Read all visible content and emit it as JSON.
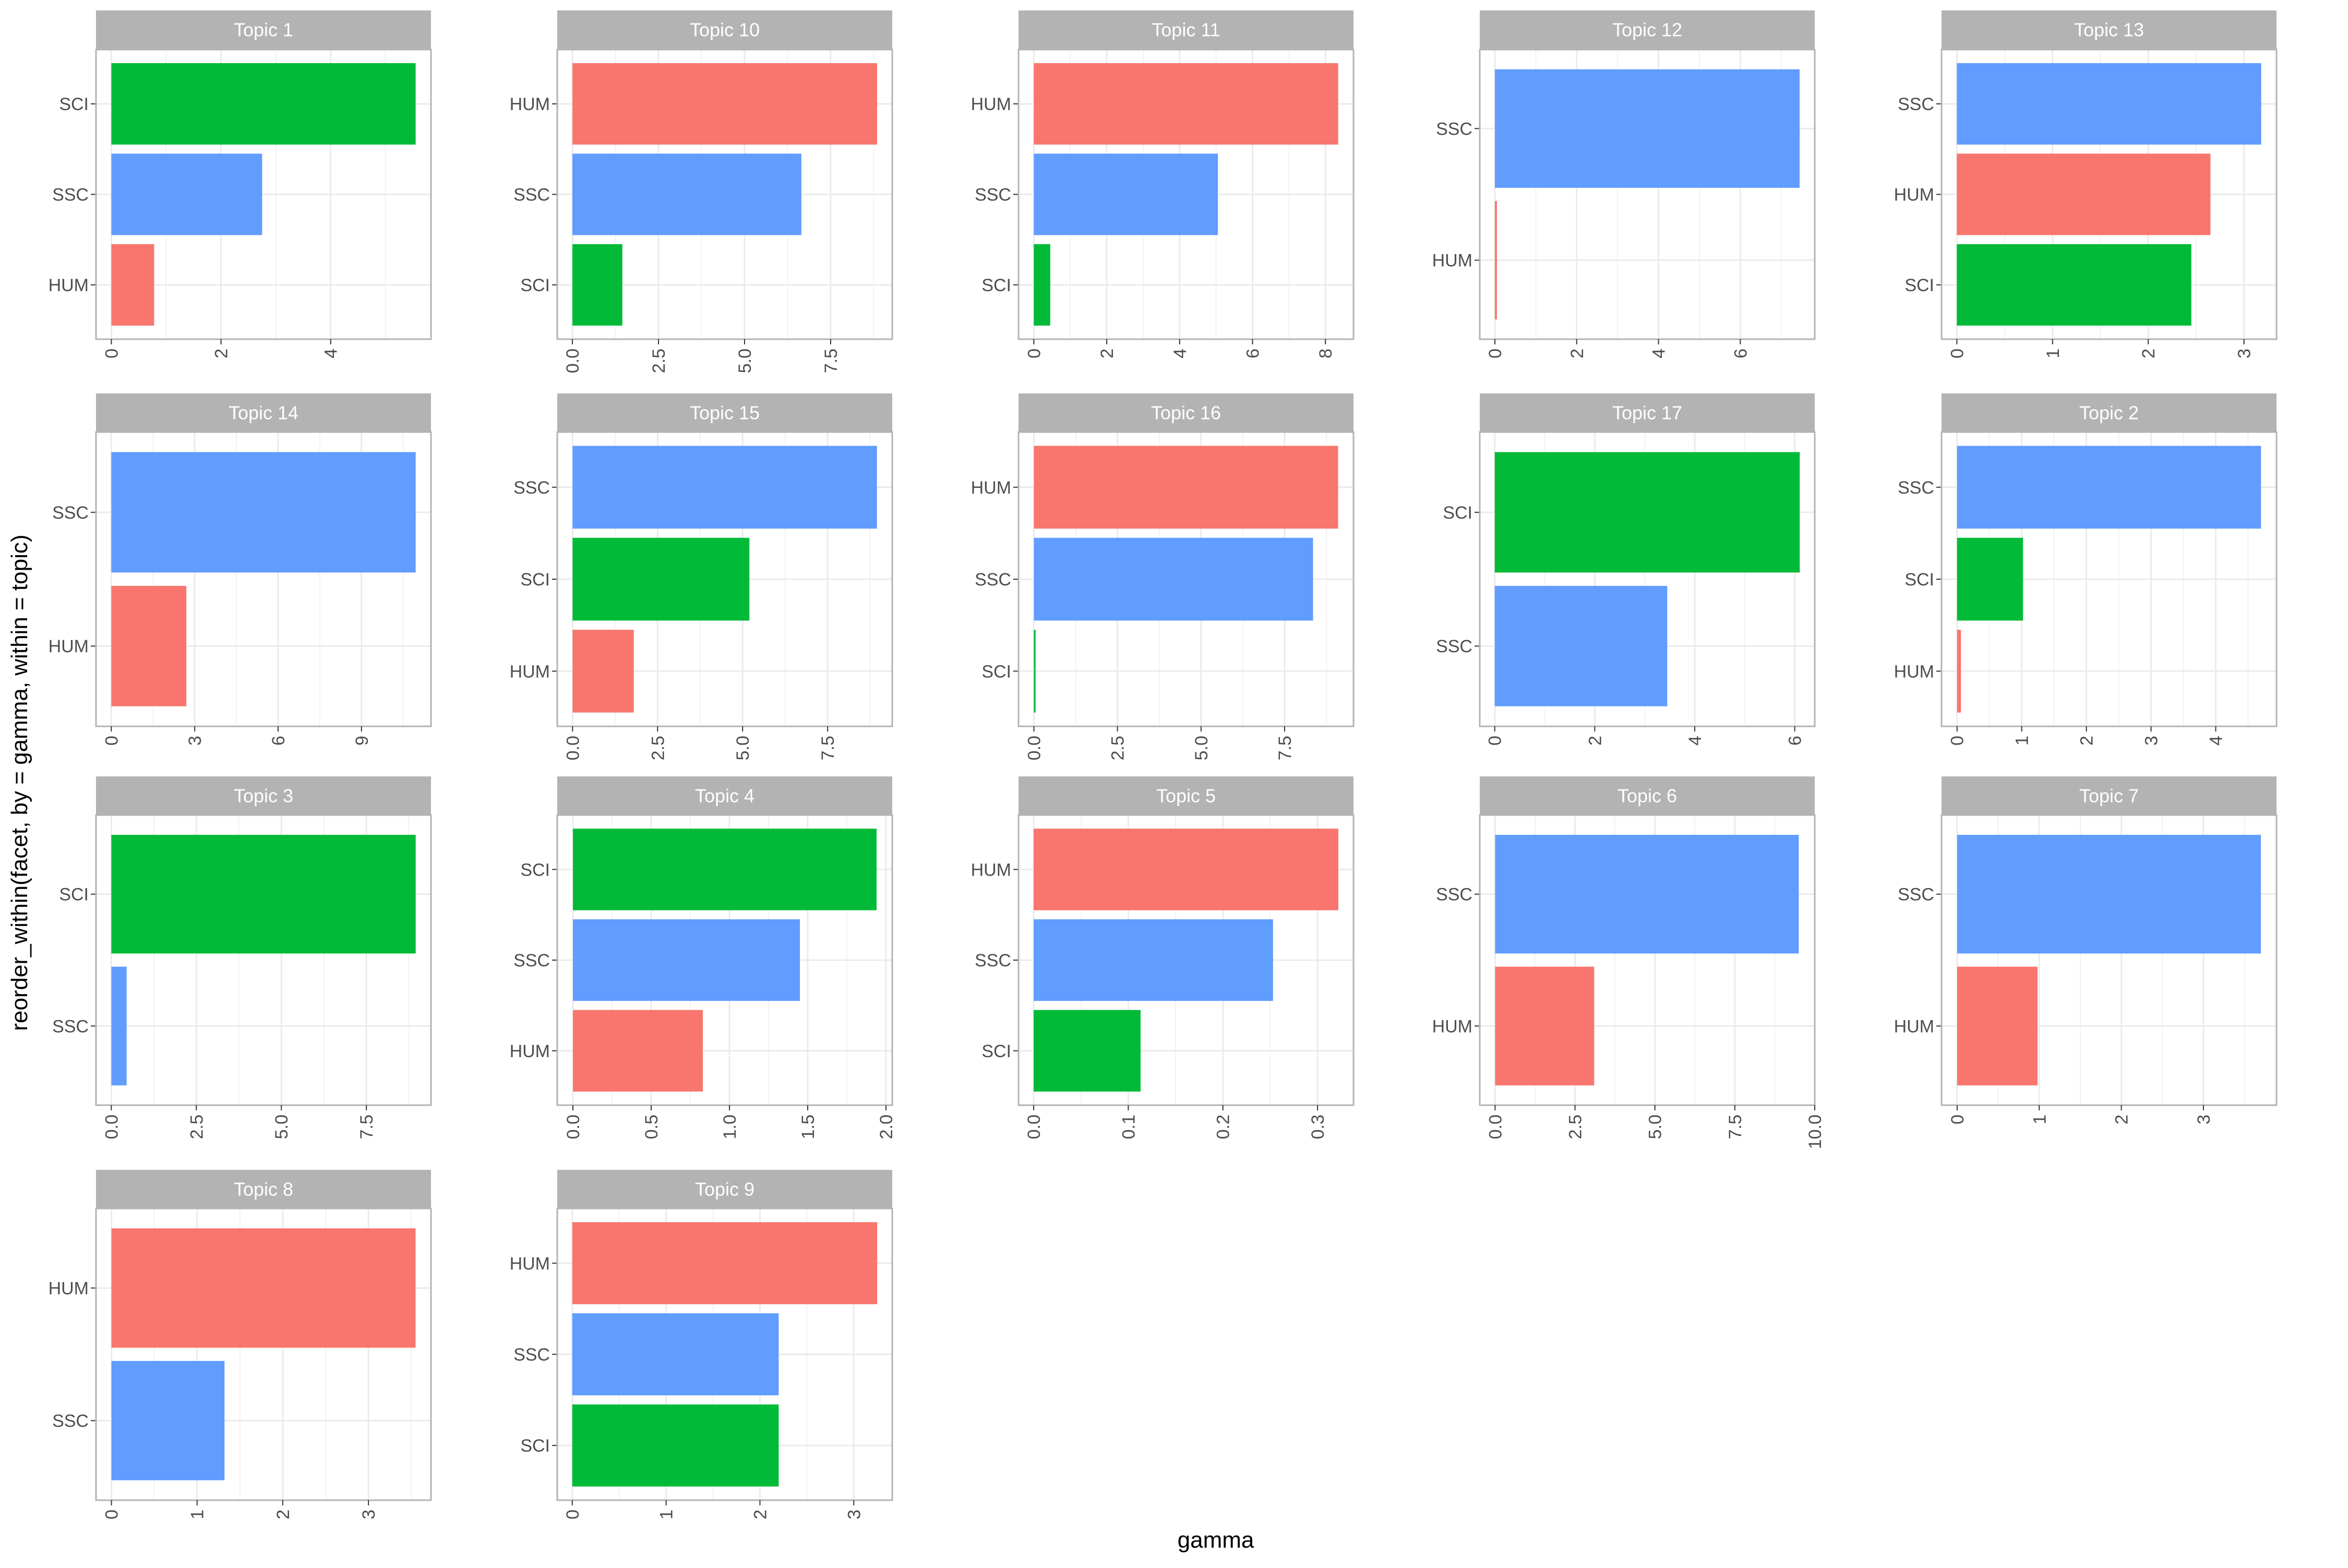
{
  "chart_data": {
    "type": "bar",
    "orientation": "horizontal",
    "xlabel": "gamma",
    "ylabel": "reorder_within(facet, by = gamma, within = topic)",
    "colors": {
      "HUM": "#F8766D",
      "SCI": "#00BA38",
      "SSC": "#619CFF"
    },
    "facets": [
      {
        "title": "Topic 1",
        "categories": [
          "SCI",
          "SSC",
          "HUM"
        ],
        "values": [
          5.55,
          2.75,
          0.78
        ],
        "xlim": [
          -0.28,
          5.83
        ],
        "ticks": [
          0,
          2,
          4
        ],
        "tick_labels": [
          "0",
          "2",
          "4"
        ]
      },
      {
        "title": "Topic 10",
        "categories": [
          "HUM",
          "SSC",
          "SCI"
        ],
        "values": [
          8.85,
          6.65,
          1.45
        ],
        "xlim": [
          -0.44,
          9.29
        ],
        "ticks": [
          0,
          2.5,
          5,
          7.5
        ],
        "tick_labels": [
          "0.0",
          "2.5",
          "5.0",
          "7.5"
        ]
      },
      {
        "title": "Topic 11",
        "categories": [
          "HUM",
          "SSC",
          "SCI"
        ],
        "values": [
          8.35,
          5.05,
          0.45
        ],
        "xlim": [
          -0.42,
          8.77
        ],
        "ticks": [
          0,
          2,
          4,
          6,
          8
        ],
        "tick_labels": [
          "0",
          "2",
          "4",
          "6",
          "8"
        ]
      },
      {
        "title": "Topic 12",
        "categories": [
          "SSC",
          "HUM"
        ],
        "values": [
          7.45,
          0.05
        ],
        "xlim": [
          -0.37,
          7.82
        ],
        "ticks": [
          0,
          2,
          4,
          6
        ],
        "tick_labels": [
          "0",
          "2",
          "4",
          "6"
        ]
      },
      {
        "title": "Topic 13",
        "categories": [
          "SSC",
          "HUM",
          "SCI"
        ],
        "values": [
          3.18,
          2.65,
          2.45
        ],
        "xlim": [
          -0.16,
          3.34
        ],
        "ticks": [
          0,
          1,
          2,
          3
        ],
        "tick_labels": [
          "0",
          "1",
          "2",
          "3"
        ]
      },
      {
        "title": "Topic 14",
        "categories": [
          "SSC",
          "HUM"
        ],
        "values": [
          10.95,
          2.7
        ],
        "xlim": [
          -0.55,
          11.5
        ],
        "ticks": [
          0,
          3,
          6,
          9
        ],
        "tick_labels": [
          "0",
          "3",
          "6",
          "9"
        ]
      },
      {
        "title": "Topic 15",
        "categories": [
          "SSC",
          "SCI",
          "HUM"
        ],
        "values": [
          8.95,
          5.2,
          1.8
        ],
        "xlim": [
          -0.45,
          9.4
        ],
        "ticks": [
          0,
          2.5,
          5,
          7.5
        ],
        "tick_labels": [
          "0.0",
          "2.5",
          "5.0",
          "7.5"
        ]
      },
      {
        "title": "Topic 16",
        "categories": [
          "HUM",
          "SSC",
          "SCI"
        ],
        "values": [
          9.1,
          8.35,
          0.05
        ],
        "xlim": [
          -0.46,
          9.56
        ],
        "ticks": [
          0,
          2.5,
          5,
          7.5
        ],
        "tick_labels": [
          "0.0",
          "2.5",
          "5.0",
          "7.5"
        ]
      },
      {
        "title": "Topic 17",
        "categories": [
          "SCI",
          "SSC"
        ],
        "values": [
          6.1,
          3.45
        ],
        "xlim": [
          -0.3,
          6.4
        ],
        "ticks": [
          0,
          2,
          4,
          6
        ],
        "tick_labels": [
          "0",
          "2",
          "4",
          "6"
        ]
      },
      {
        "title": "Topic 2",
        "categories": [
          "SSC",
          "SCI",
          "HUM"
        ],
        "values": [
          4.7,
          1.02,
          0.06
        ],
        "xlim": [
          -0.24,
          4.94
        ],
        "ticks": [
          0,
          1,
          2,
          3,
          4
        ],
        "tick_labels": [
          "0",
          "1",
          "2",
          "3",
          "4"
        ]
      },
      {
        "title": "Topic 3",
        "categories": [
          "SCI",
          "SSC"
        ],
        "values": [
          8.95,
          0.45
        ],
        "xlim": [
          -0.45,
          9.4
        ],
        "ticks": [
          0,
          2.5,
          5,
          7.5
        ],
        "tick_labels": [
          "0.0",
          "2.5",
          "5.0",
          "7.5"
        ]
      },
      {
        "title": "Topic 4",
        "categories": [
          "SCI",
          "SSC",
          "HUM"
        ],
        "values": [
          1.94,
          1.45,
          0.83
        ],
        "xlim": [
          -0.1,
          2.04
        ],
        "ticks": [
          0,
          0.5,
          1,
          1.5,
          2
        ],
        "tick_labels": [
          "0.0",
          "0.5",
          "1.0",
          "1.5",
          "2.0"
        ]
      },
      {
        "title": "Topic 5",
        "categories": [
          "HUM",
          "SSC",
          "SCI"
        ],
        "values": [
          0.322,
          0.253,
          0.113
        ],
        "xlim": [
          -0.016,
          0.338
        ],
        "ticks": [
          0,
          0.1,
          0.2,
          0.3
        ],
        "tick_labels": [
          "0.0",
          "0.1",
          "0.2",
          "0.3"
        ]
      },
      {
        "title": "Topic 6",
        "categories": [
          "SSC",
          "HUM"
        ],
        "values": [
          9.5,
          3.1
        ],
        "xlim": [
          -0.48,
          10.0
        ],
        "ticks": [
          0,
          2.5,
          5,
          7.5,
          10
        ],
        "tick_labels": [
          "0.0",
          "2.5",
          "5.0",
          "7.5",
          "10.0"
        ]
      },
      {
        "title": "Topic 7",
        "categories": [
          "SSC",
          "HUM"
        ],
        "values": [
          3.7,
          0.98
        ],
        "xlim": [
          -0.19,
          3.89
        ],
        "ticks": [
          0,
          1,
          2,
          3
        ],
        "tick_labels": [
          "0",
          "1",
          "2",
          "3"
        ]
      },
      {
        "title": "Topic 8",
        "categories": [
          "HUM",
          "SSC"
        ],
        "values": [
          3.55,
          1.32
        ],
        "xlim": [
          -0.18,
          3.73
        ],
        "ticks": [
          0,
          1,
          2,
          3
        ],
        "tick_labels": [
          "0",
          "1",
          "2",
          "3"
        ]
      },
      {
        "title": "Topic 9",
        "categories": [
          "HUM",
          "SSC",
          "SCI"
        ],
        "values": [
          3.25,
          2.2,
          2.2
        ],
        "xlim": [
          -0.16,
          3.41
        ],
        "ticks": [
          0,
          1,
          2,
          3
        ],
        "tick_labels": [
          "0",
          "1",
          "2",
          "3"
        ]
      }
    ]
  }
}
